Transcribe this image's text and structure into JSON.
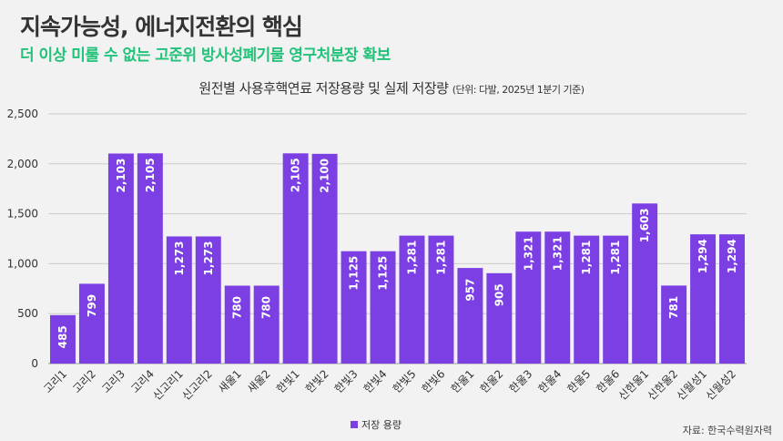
{
  "header": {
    "title": "지속가능성, 에너지전환의 핵심",
    "subtitle": "더 이상 미룰 수 없는 고준위 방사성폐기물 영구처분장 확보"
  },
  "chart_heading": {
    "title": "원전별 사용후핵연료 저장용량 및 실제 저장량",
    "unit_note": "(단위: 다발, 2025년 1분기 기준)"
  },
  "source_note": "자료: 한국수력원자력",
  "colors": {
    "bar": "#7b3fe4",
    "grid": "#cccccc",
    "axis_text": "#333333",
    "label_text": "#ffffff",
    "subtitle": "#22c27a",
    "background": "#f2f2f2"
  },
  "chart_data": {
    "type": "bar",
    "categories": [
      "고리1",
      "고리2",
      "고리3",
      "고리4",
      "신고리1",
      "신고리2",
      "새울1",
      "새울2",
      "한빛1",
      "한빛2",
      "한빛3",
      "한빛4",
      "한빛5",
      "한빛6",
      "한울1",
      "한울2",
      "한울3",
      "한울4",
      "한울5",
      "한울6",
      "신한울1",
      "신한울2",
      "신월성1",
      "신월성2"
    ],
    "series": [
      {
        "name": "저장 용량",
        "values": [
          485,
          799,
          2103,
          2105,
          1273,
          1273,
          780,
          780,
          2105,
          2100,
          1125,
          1125,
          1281,
          1281,
          957,
          905,
          1321,
          1321,
          1281,
          1281,
          1603,
          781,
          1294,
          1294
        ],
        "labels": [
          "485",
          "799",
          "2,103",
          "2,105",
          "1,273",
          "1,273",
          "780",
          "780",
          "2,105",
          "2,100",
          "1,125",
          "1,125",
          "1,281",
          "1,281",
          "957",
          "905",
          "1,321",
          "1,321",
          "1,281",
          "1,281",
          "1,603",
          "781",
          "1,294",
          "1,294"
        ]
      }
    ],
    "yticks": [
      "0",
      "500",
      "1,000",
      "1,500",
      "2,000",
      "2,500"
    ],
    "ytick_values": [
      0,
      500,
      1000,
      1500,
      2000,
      2500
    ],
    "ylim": [
      0,
      2500
    ],
    "grid": true,
    "legend_position": "bottom-center"
  }
}
